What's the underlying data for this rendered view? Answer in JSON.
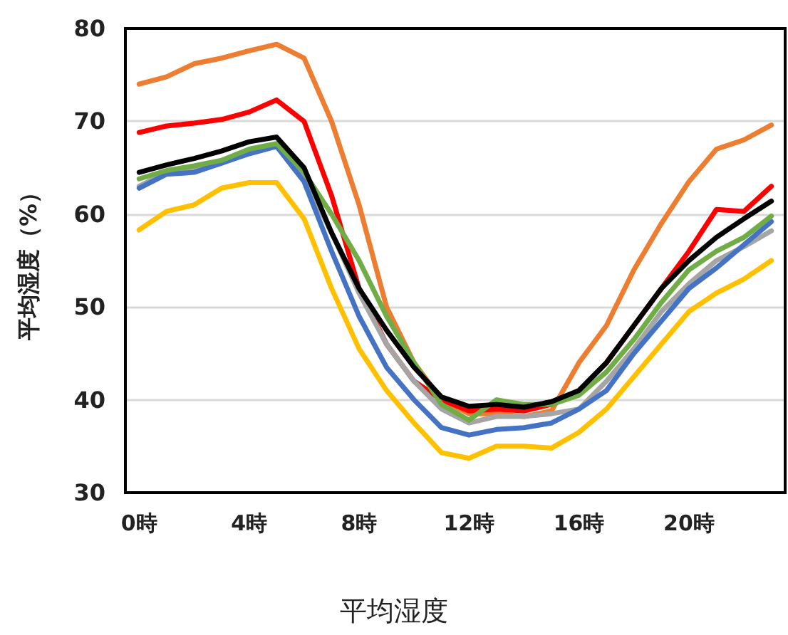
{
  "chart_data": {
    "type": "line",
    "title": "平均湿度",
    "ylabel": "平均湿度（%）",
    "categories": [
      "0時",
      null,
      null,
      null,
      "4時",
      null,
      null,
      null,
      "8時",
      null,
      null,
      null,
      "12時",
      null,
      null,
      null,
      "16時",
      null,
      null,
      null,
      "20時",
      null,
      null,
      null
    ],
    "series": [
      {
        "color": "#ed7d31",
        "values": [
          74,
          74.8,
          76.2,
          76.8,
          77.6,
          78.3,
          76.8,
          70,
          61,
          50,
          44,
          40,
          38.5,
          38.5,
          38.2,
          38.8,
          44,
          48,
          54,
          59,
          63.5,
          67,
          68,
          69.6
        ]
      },
      {
        "color": "#ff0000",
        "values": [
          68.8,
          69.5,
          69.8,
          70.2,
          71,
          72.3,
          70,
          62,
          52,
          46,
          42,
          40,
          38.8,
          39,
          38.8,
          39.5,
          41,
          44,
          48,
          52,
          56,
          60.5,
          60.3,
          63
        ]
      },
      {
        "color": "#a5a5a5",
        "values": [
          63,
          64.5,
          64.7,
          65.5,
          66.7,
          67.5,
          64,
          58,
          51.5,
          46,
          42,
          39,
          37.5,
          38.2,
          38.2,
          38.5,
          39,
          42,
          45.5,
          49.5,
          52.5,
          55,
          56.5,
          58.2
        ]
      },
      {
        "color": "#4472c4",
        "values": [
          62.8,
          64.3,
          64.5,
          65.5,
          66.5,
          67.3,
          63.5,
          56,
          49,
          43.5,
          40,
          37,
          36.2,
          36.8,
          37,
          37.5,
          39,
          41,
          45,
          48.5,
          52,
          54.2,
          56.7,
          59.2
        ]
      },
      {
        "color": "#ffc000",
        "values": [
          58.3,
          60.3,
          61,
          62.8,
          63.4,
          63.4,
          59.5,
          52,
          45.5,
          41,
          37.5,
          34.3,
          33.7,
          35,
          35,
          34.8,
          36.5,
          39,
          42.5,
          46,
          49.5,
          51.5,
          53,
          55
        ]
      },
      {
        "color": "#70ad47",
        "values": [
          63.8,
          64.7,
          65.2,
          65.8,
          67,
          67.6,
          64.5,
          60,
          55,
          49,
          44,
          39.5,
          37.8,
          40,
          39.5,
          39.5,
          40.5,
          43,
          46.5,
          50.5,
          54,
          56,
          57.5,
          59.8
        ]
      },
      {
        "color": "#000000",
        "values": [
          64.5,
          65.3,
          66,
          66.8,
          67.8,
          68.3,
          65,
          58,
          52,
          47.5,
          43.5,
          40.3,
          39.3,
          39.5,
          39.2,
          39.8,
          41,
          44,
          48,
          52,
          55,
          57.5,
          59.5,
          61.4
        ]
      }
    ],
    "ylim": [
      30,
      80
    ],
    "yticks": [
      30,
      40,
      50,
      60,
      70,
      80
    ],
    "grid": "y",
    "marker": "none",
    "line_style": "solid"
  }
}
